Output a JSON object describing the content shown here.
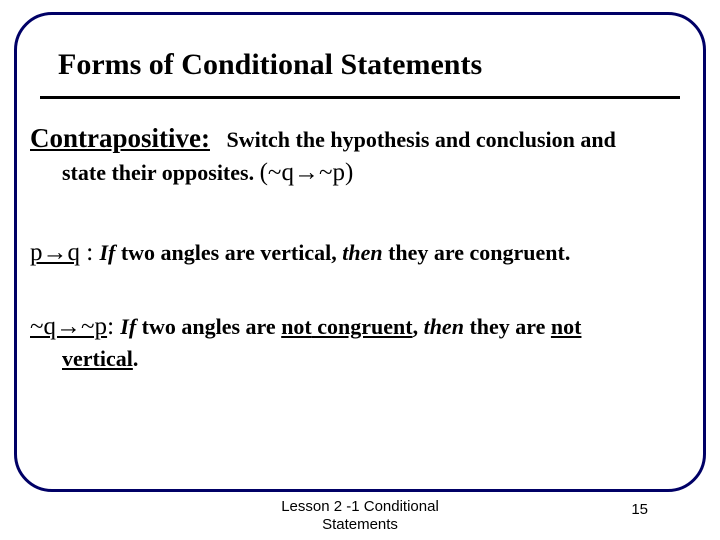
{
  "slide": {
    "title": "Forms of Conditional Statements",
    "term": "Contrapositive:",
    "def_part1": "Switch the hypothesis and conclusion and",
    "def_part2": "state their opposites.",
    "def_formula": "(~q→~p)",
    "ex1_sym": "p→q",
    "ex1_colon": " : ",
    "ex1_if": "If ",
    "ex1_hyp": "two angles are vertical, ",
    "ex1_then": "then",
    "ex1_concl": " they are congruent.",
    "ex2_sym": "~q→~p",
    "ex2_colon": ": ",
    "ex2_if": "If ",
    "ex2_l1a": "two angles are ",
    "ex2_not1": "not",
    "ex2_l1b": " congruent",
    "ex2_l1c": ", ",
    "ex2_then": "then",
    "ex2_l1d": " they are ",
    "ex2_not2": "not",
    "ex2_l2a": "vertical",
    "ex2_l2b": "."
  },
  "footer": {
    "lesson_line1": "Lesson 2 -1 Conditional",
    "lesson_line2": "Statements",
    "page": "15"
  },
  "style": {
    "frame_border_color": "#000066",
    "text_color": "#000000",
    "background": "#ffffff"
  }
}
